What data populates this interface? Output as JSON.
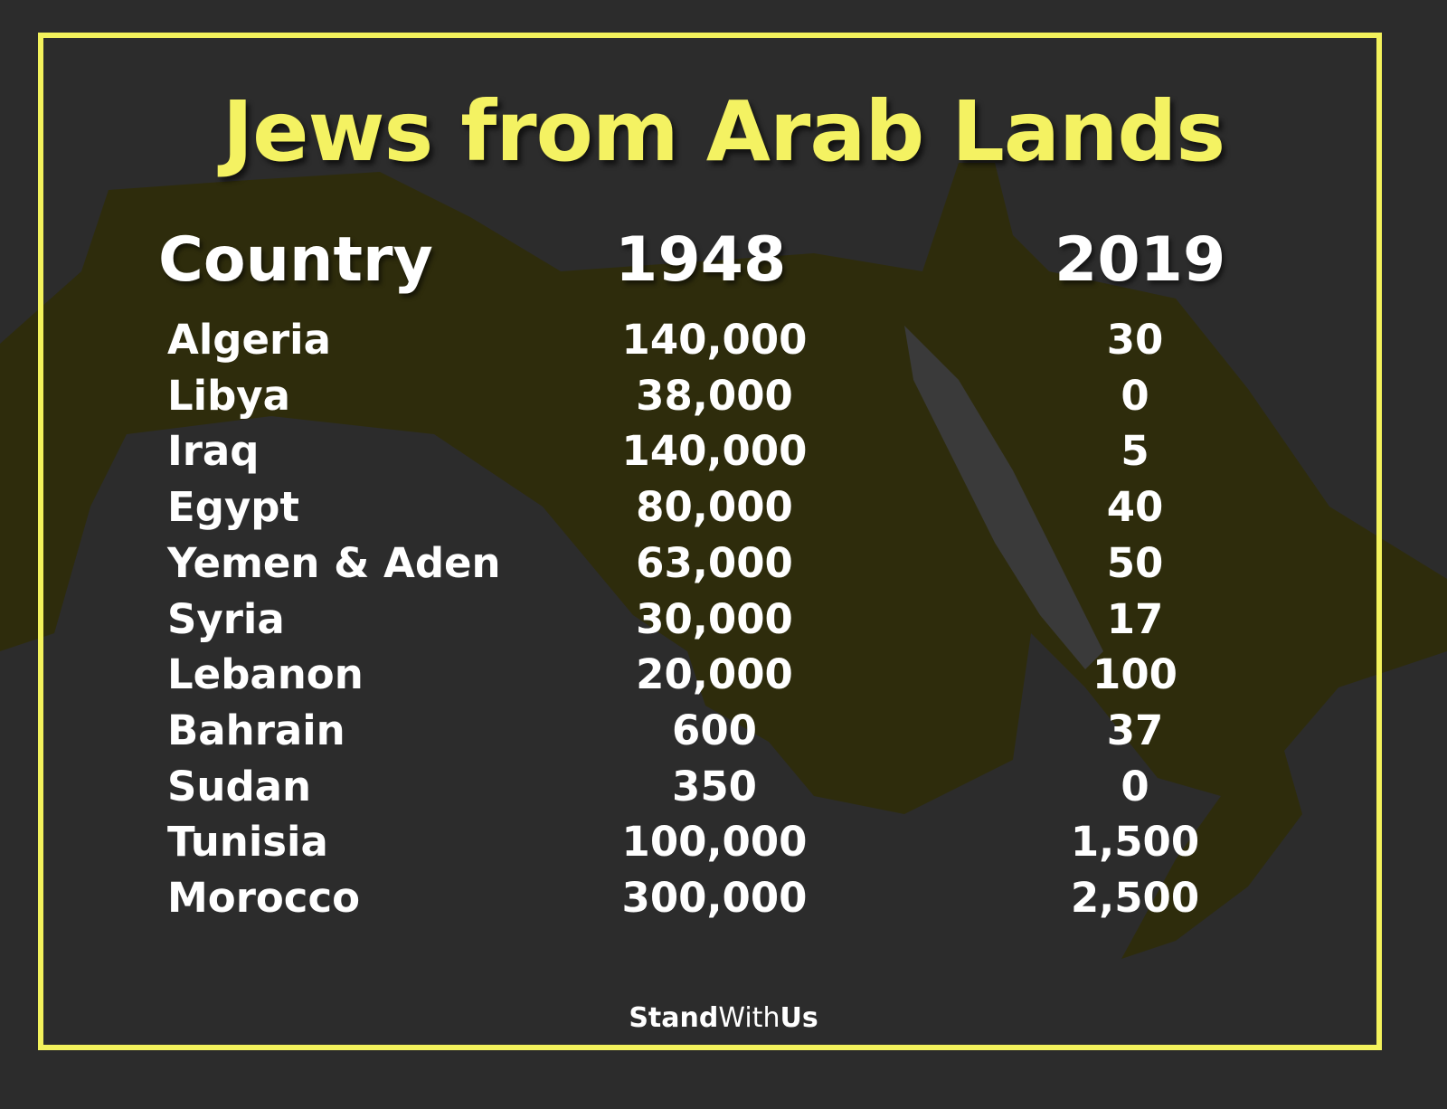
{
  "title": "Jews from Arab Lands",
  "colors": {
    "accent": "#f4f262",
    "background": "#2c2c2c",
    "map_highlight": "#2e2c0c"
  },
  "chart_data": {
    "type": "table",
    "title": "Jews from Arab Lands",
    "columns": [
      "Country",
      "1948",
      "2019"
    ],
    "rows": [
      [
        "Algeria",
        "140,000",
        "30"
      ],
      [
        "Libya",
        "38,000",
        "0"
      ],
      [
        "Iraq",
        "140,000",
        "5"
      ],
      [
        "Egypt",
        "80,000",
        "40"
      ],
      [
        "Yemen & Aden",
        "63,000",
        "50"
      ],
      [
        "Syria",
        "30,000",
        "17"
      ],
      [
        "Lebanon",
        "20,000",
        "100"
      ],
      [
        "Bahrain",
        "600",
        "37"
      ],
      [
        "Sudan",
        "350",
        "0"
      ],
      [
        "Tunisia",
        "100,000",
        "1,500"
      ],
      [
        "Morocco",
        "300,000",
        "2,500"
      ]
    ]
  },
  "logo": {
    "part1": "Stand",
    "part2": "With",
    "part3": "Us"
  }
}
